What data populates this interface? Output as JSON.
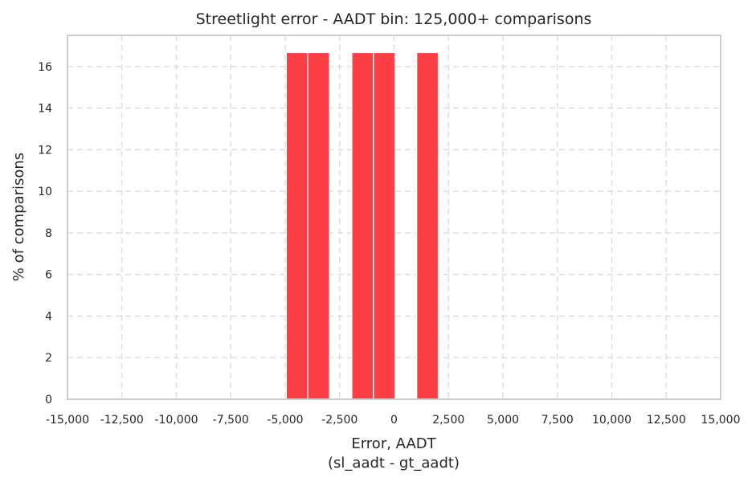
{
  "chart_data": {
    "type": "bar",
    "title": "Streetlight error - AADT bin: 125,000+ comparisons",
    "xlabel": "Error, AADT",
    "xlabel_line2": "(sl_aadt - gt_aadt)",
    "ylabel": "% of comparisons",
    "xlim": [
      -15000,
      15000
    ],
    "ylim": [
      0,
      17.5
    ],
    "xticks": [
      -15000,
      -12500,
      -10000,
      -7500,
      -5000,
      -2500,
      0,
      2500,
      5000,
      7500,
      10000,
      12500,
      15000
    ],
    "xtick_labels": [
      "-15,000",
      "-12,500",
      "-10,000",
      "-7,500",
      "-5,000",
      "-2,500",
      "0",
      "2,500",
      "5,000",
      "7,500",
      "10,000",
      "12,500",
      "15,000"
    ],
    "yticks": [
      0,
      2,
      4,
      6,
      8,
      10,
      12,
      14,
      16
    ],
    "ytick_labels": [
      "0",
      "2",
      "4",
      "6",
      "8",
      "10",
      "12",
      "14",
      "16"
    ],
    "grid": true,
    "bar_color": "#fc3f44",
    "bins": [
      {
        "x0": -4950,
        "x1": -3960,
        "value": 16.67
      },
      {
        "x0": -3960,
        "x1": -2970,
        "value": 16.67
      },
      {
        "x0": -1940,
        "x1": -950,
        "value": 16.67
      },
      {
        "x0": -950,
        "x1": 40,
        "value": 16.67
      },
      {
        "x0": 1040,
        "x1": 2030,
        "value": 16.67
      }
    ]
  }
}
